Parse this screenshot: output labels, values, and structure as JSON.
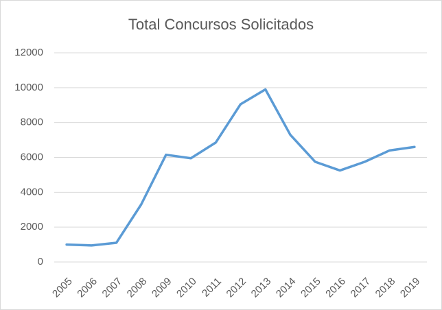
{
  "chart_data": {
    "type": "line",
    "title": "Total Concursos Solicitados",
    "categories": [
      "2005",
      "2006",
      "2007",
      "2008",
      "2009",
      "2010",
      "2011",
      "2012",
      "2013",
      "2014",
      "2015",
      "2016",
      "2017",
      "2018",
      "2019"
    ],
    "values": [
      1000,
      950,
      1100,
      3300,
      6150,
      5950,
      6850,
      9050,
      9900,
      7300,
      5750,
      5250,
      5750,
      6400,
      6600
    ],
    "color": "#5b9bd5",
    "ylim": [
      0,
      12000
    ],
    "yticks": [
      0,
      2000,
      4000,
      6000,
      8000,
      10000,
      12000
    ],
    "grid": true
  }
}
